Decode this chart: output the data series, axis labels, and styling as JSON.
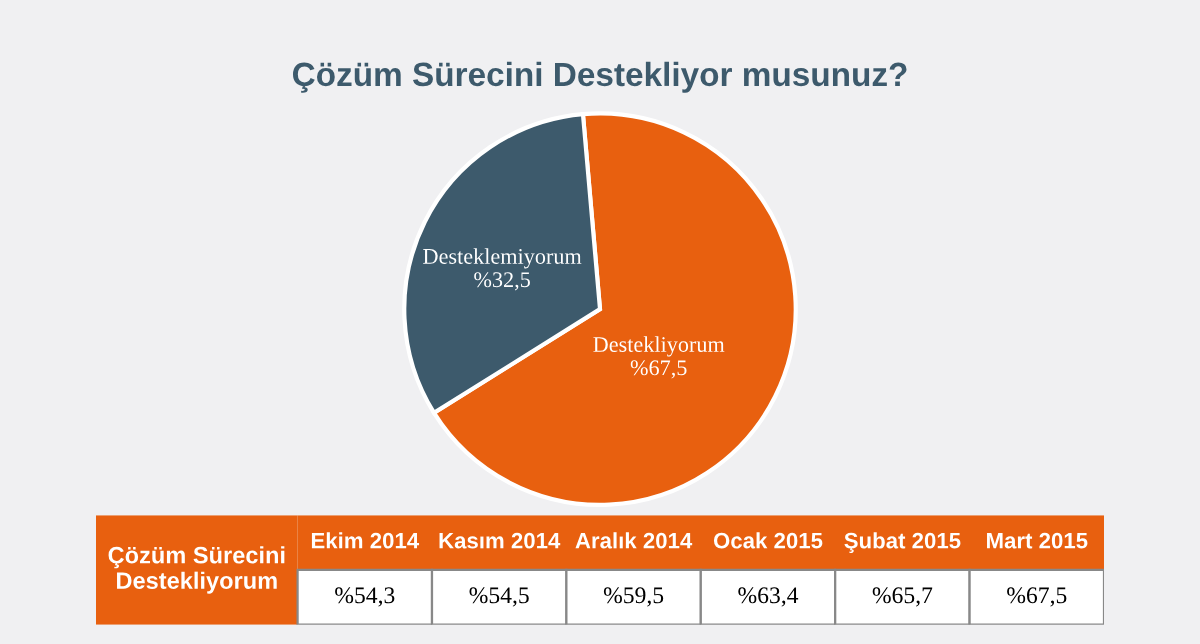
{
  "chart_data": [
    {
      "type": "pie",
      "title": "Çözüm Sürecini Destekliyor musunuz?",
      "categories": [
        "Destekliyorum",
        "Desteklemiyorum"
      ],
      "values": [
        67.5,
        32.5
      ],
      "colors": [
        "#e8600f",
        "#3d5a6c"
      ],
      "value_labels": [
        "%67,5",
        "%32,5"
      ]
    },
    {
      "type": "other",
      "ylabel": "Çözüm Sürecini Destekliyorum",
      "categories": [
        "Ekim 2014",
        "Kasım 2014",
        "Aralık 2014",
        "Ocak 2015",
        "Şubat 2015",
        "Mart 2015"
      ],
      "values": [
        54.3,
        54.5,
        59.5,
        63.4,
        65.7,
        67.5
      ],
      "value_labels": [
        "%54,3",
        "%54,5",
        "%59,5",
        "%63,4",
        "%65,7",
        "%67,5"
      ]
    }
  ]
}
